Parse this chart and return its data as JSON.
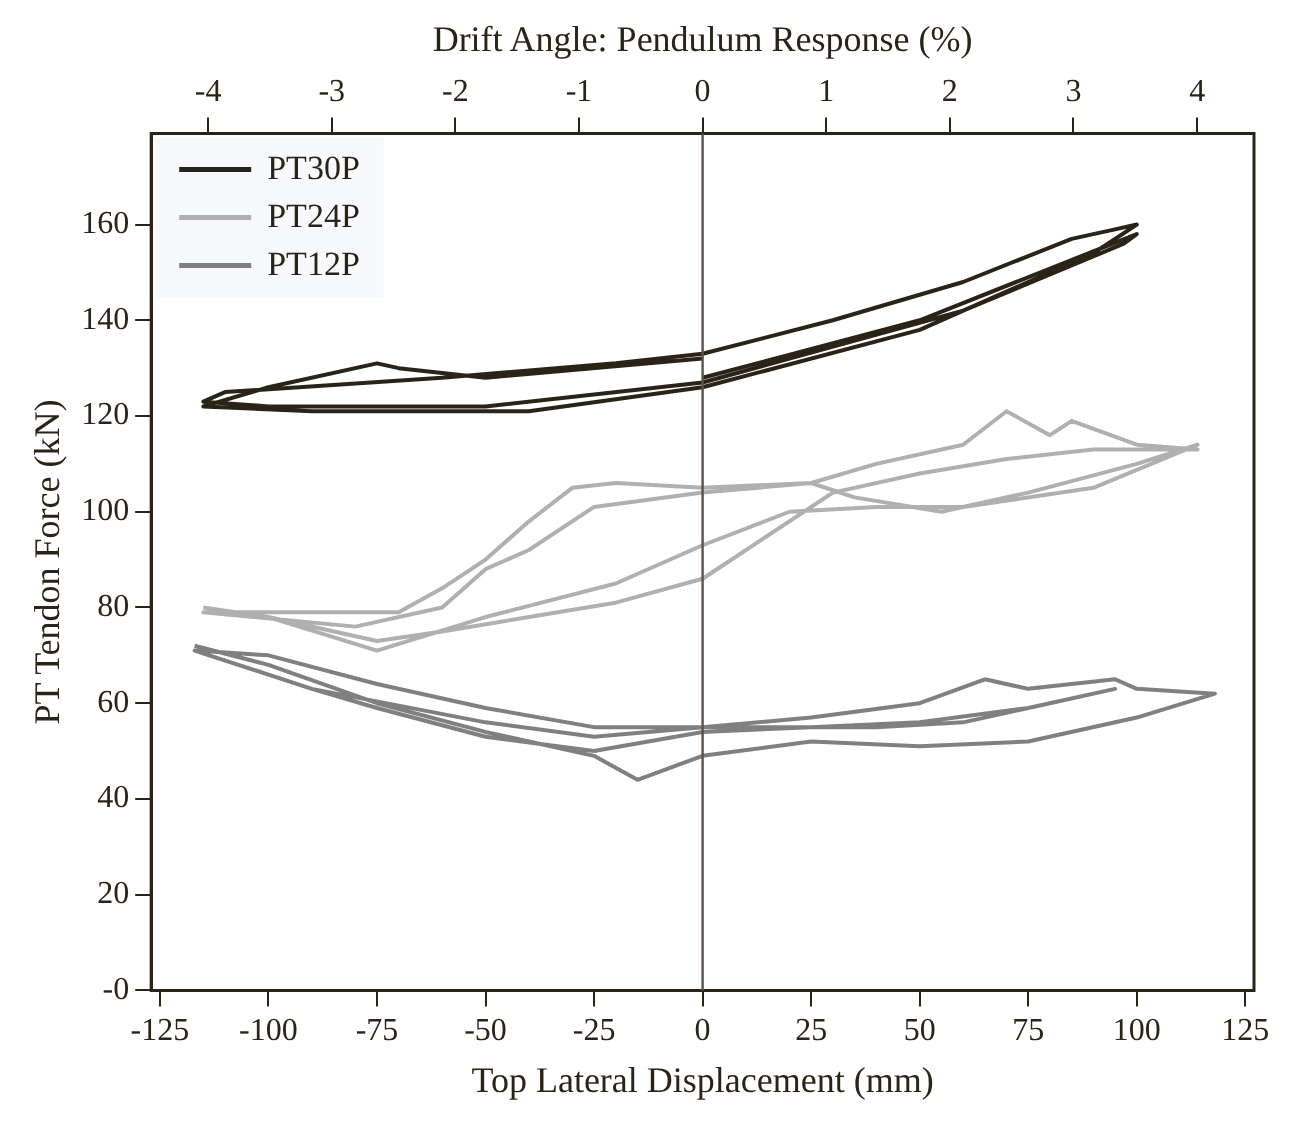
{
  "chart_data": {
    "type": "line",
    "xlabel": "Top Lateral Displacement (mm)",
    "ylabel": "PT Tendon Force (kN)",
    "x2label": "Drift Angle: Pendulum Response (%)",
    "xlim": [
      -127,
      127
    ],
    "xticks": [
      -125,
      -100,
      -75,
      -50,
      -25,
      0,
      25,
      50,
      75,
      100,
      125
    ],
    "x2lim": [
      -4.46,
      4.46
    ],
    "x2ticks": [
      -4,
      -3,
      -2,
      -1,
      0,
      1,
      2,
      3,
      4
    ],
    "ylim": [
      0,
      179
    ],
    "yticks": [
      {
        "value": 0,
        "label": "-0"
      },
      20,
      40,
      60,
      80,
      100,
      120,
      140,
      160
    ],
    "grid": false,
    "legend": "top left",
    "marker": "none",
    "ref_lines": [
      {
        "axis": "x",
        "value": 0,
        "color": "#5a5248"
      }
    ],
    "series": [
      {
        "name": "PT30P",
        "color": "#2a2418",
        "x": [
          0,
          50,
          100,
          97,
          60,
          20,
          0,
          -50,
          -100,
          -115,
          -110,
          -60,
          -20,
          0,
          30,
          60,
          85,
          95,
          100,
          90,
          50,
          0,
          -40,
          -90,
          -115,
          -100,
          -75,
          -70,
          -50,
          0
        ],
        "values": [
          128,
          140,
          158,
          156,
          142,
          132,
          127,
          122,
          122,
          123,
          125,
          128,
          131,
          133,
          140,
          148,
          157,
          159,
          160,
          154,
          138,
          126,
          121,
          121,
          122,
          126,
          131,
          130,
          128,
          132
        ]
      },
      {
        "name": "PT24P",
        "color": "#b0b0b0",
        "x": [
          -115,
          -100,
          -75,
          -60,
          -40,
          -20,
          0,
          15,
          30,
          50,
          70,
          90,
          114,
          100,
          85,
          80,
          70,
          60,
          40,
          25,
          0,
          -20,
          -30,
          -40,
          -50,
          -60,
          -70,
          -100,
          -115,
          -100,
          -75,
          -50,
          -20,
          0,
          20,
          40,
          60,
          90,
          114,
          100,
          75,
          55,
          35,
          25,
          0,
          -25,
          -40,
          -50,
          -60,
          -80,
          -115
        ],
        "values": [
          80,
          78,
          73,
          75,
          78,
          81,
          86,
          95,
          104,
          108,
          111,
          113,
          113,
          114,
          119,
          116,
          121,
          114,
          110,
          106,
          105,
          106,
          105,
          98,
          90,
          84,
          79,
          79,
          79,
          78,
          71,
          78,
          85,
          93,
          100,
          101,
          101,
          105,
          114,
          110,
          104,
          100,
          103,
          106,
          104,
          101,
          92,
          88,
          80,
          76,
          79
        ]
      },
      {
        "name": "PT12P",
        "color": "#808080",
        "x": [
          -117,
          -100,
          -75,
          -50,
          -25,
          -15,
          0,
          25,
          50,
          75,
          100,
          118,
          100,
          95,
          75,
          65,
          50,
          25,
          0,
          -25,
          -50,
          -75,
          -100,
          -117,
          -90,
          -75,
          -50,
          -25,
          0,
          25,
          50,
          75,
          95,
          80,
          60,
          40,
          0,
          -25,
          -50,
          -90
        ],
        "values": [
          72,
          68,
          60,
          54,
          49,
          44,
          49,
          52,
          51,
          52,
          57,
          62,
          63,
          65,
          63,
          65,
          60,
          57,
          55,
          55,
          59,
          64,
          70,
          71,
          63,
          59,
          53,
          50,
          54,
          55,
          56,
          59,
          63,
          60,
          56,
          55,
          55,
          53,
          56,
          63
        ]
      }
    ]
  }
}
